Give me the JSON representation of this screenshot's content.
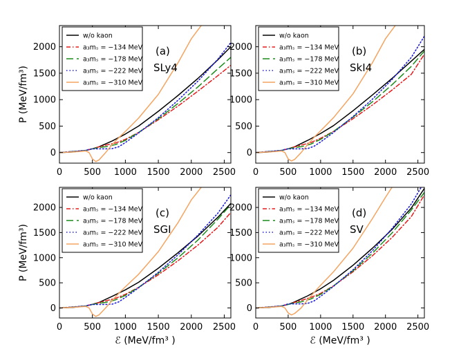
{
  "figure": {
    "ylabel": "P (MeV/fm³)",
    "xlabel": "ℰ (MeV/fm³ )"
  },
  "legend": [
    {
      "label": "w/o kaon",
      "color": "#000000",
      "dash": "solid"
    },
    {
      "label": "a₃mₛ = −134 MeV",
      "color": "#e41a1c",
      "dash": "dashdot"
    },
    {
      "label": "a₃mₛ = −178 MeV",
      "color": "#1a8a1a",
      "dash": "dashed"
    },
    {
      "label": "a₃mₛ = −222 MeV",
      "color": "#1f1fd8",
      "dash": "dotted"
    },
    {
      "label": "a₃mₛ = −310 MeV",
      "color": "#f4a460",
      "dash": "solid"
    }
  ],
  "chart_data": [
    {
      "type": "line",
      "panel": "(a)",
      "model": "SLy4",
      "xlabel": "",
      "ylabel": "P (MeV/fm³)",
      "xlim": [
        0,
        2600
      ],
      "ylim": [
        -200,
        2400
      ],
      "xticks": [
        0,
        500,
        1000,
        1500,
        2000,
        2500
      ],
      "yticks": [
        0,
        500,
        1000,
        1500,
        2000
      ],
      "series": [
        {
          "name": "w/o kaon",
          "x": [
            0,
            200,
            400,
            500,
            600,
            800,
            1000,
            1200,
            1500,
            1800,
            2100,
            2400,
            2600
          ],
          "y": [
            0,
            10,
            40,
            70,
            110,
            220,
            350,
            500,
            780,
            1080,
            1400,
            1750,
            2000
          ]
        },
        {
          "name": "a3ms = -134 MeV",
          "x": [
            0,
            400,
            550,
            700,
            850,
            1000,
            1200,
            1500,
            1800,
            2100,
            2400,
            2600
          ],
          "y": [
            0,
            40,
            90,
            140,
            180,
            250,
            380,
            620,
            880,
            1160,
            1450,
            1650
          ]
        },
        {
          "name": "a3ms = -178 MeV",
          "x": [
            0,
            400,
            500,
            600,
            700,
            850,
            1000,
            1200,
            1500,
            1800,
            2100,
            2400,
            2600
          ],
          "y": [
            0,
            40,
            70,
            95,
            110,
            150,
            230,
            380,
            640,
            930,
            1240,
            1580,
            1800
          ]
        },
        {
          "name": "a3ms = -222 MeV",
          "x": [
            0,
            400,
            450,
            500,
            600,
            700,
            800,
            900,
            1000,
            1200,
            1500,
            1800,
            2100,
            2400,
            2600
          ],
          "y": [
            0,
            40,
            60,
            70,
            70,
            70,
            75,
            110,
            190,
            370,
            660,
            990,
            1350,
            1760,
            2080
          ]
        },
        {
          "name": "a3ms = -310 MeV",
          "x": [
            0,
            300,
            400,
            450,
            500,
            550,
            600,
            700,
            800,
            900,
            1000,
            1200,
            1500,
            1800,
            2000,
            2150
          ],
          "y": [
            0,
            20,
            30,
            0,
            -120,
            -170,
            -140,
            0,
            150,
            280,
            400,
            650,
            1100,
            1700,
            2150,
            2400
          ]
        }
      ]
    },
    {
      "type": "line",
      "panel": "(b)",
      "model": "SkI4",
      "xlabel": "",
      "ylabel": "",
      "xlim": [
        0,
        2600
      ],
      "ylim": [
        -200,
        2400
      ],
      "xticks": [
        0,
        500,
        1000,
        1500,
        2000,
        2500
      ],
      "yticks": [
        0,
        500,
        1000,
        1500,
        2000
      ],
      "series": [
        {
          "name": "w/o kaon",
          "x": [
            0,
            200,
            400,
            500,
            600,
            800,
            1000,
            1200,
            1500,
            1800,
            2100,
            2400,
            2600
          ],
          "y": [
            0,
            10,
            40,
            70,
            110,
            230,
            360,
            510,
            790,
            1090,
            1400,
            1730,
            1950
          ]
        },
        {
          "name": "a3ms = -134 MeV",
          "x": [
            0,
            400,
            550,
            700,
            850,
            1000,
            1200,
            1500,
            1800,
            2100,
            2400,
            2600
          ],
          "y": [
            0,
            40,
            90,
            140,
            190,
            270,
            400,
            640,
            900,
            1180,
            1480,
            1860
          ]
        },
        {
          "name": "a3ms = -178 MeV",
          "x": [
            0,
            400,
            500,
            600,
            700,
            850,
            1000,
            1200,
            1500,
            1800,
            2100,
            2400,
            2600
          ],
          "y": [
            0,
            40,
            70,
            95,
            110,
            160,
            250,
            400,
            670,
            960,
            1280,
            1630,
            1920
          ]
        },
        {
          "name": "a3ms = -222 MeV",
          "x": [
            0,
            400,
            450,
            500,
            600,
            700,
            800,
            900,
            1000,
            1200,
            1500,
            1800,
            2100,
            2400,
            2600
          ],
          "y": [
            0,
            40,
            60,
            70,
            70,
            70,
            75,
            120,
            200,
            380,
            680,
            1010,
            1380,
            1800,
            2200
          ]
        },
        {
          "name": "a3ms = -310 MeV",
          "x": [
            0,
            300,
            400,
            450,
            500,
            550,
            600,
            700,
            800,
            900,
            1000,
            1200,
            1500,
            1800,
            2000,
            2150
          ],
          "y": [
            0,
            20,
            30,
            0,
            -120,
            -160,
            -130,
            0,
            150,
            290,
            410,
            660,
            1110,
            1700,
            2150,
            2400
          ]
        }
      ]
    },
    {
      "type": "line",
      "panel": "(c)",
      "model": "SGI",
      "xlabel": "ℰ (MeV/fm³ )",
      "ylabel": "P (MeV/fm³)",
      "xlim": [
        0,
        2600
      ],
      "ylim": [
        -200,
        2400
      ],
      "xticks": [
        0,
        500,
        1000,
        1500,
        2000,
        2500
      ],
      "yticks": [
        0,
        500,
        1000,
        1500,
        2000
      ],
      "series": [
        {
          "name": "w/o kaon",
          "x": [
            0,
            200,
            400,
            500,
            600,
            800,
            1000,
            1200,
            1500,
            1800,
            2100,
            2400,
            2600
          ],
          "y": [
            0,
            10,
            40,
            70,
            110,
            230,
            360,
            510,
            790,
            1100,
            1430,
            1800,
            2080
          ]
        },
        {
          "name": "a3ms = -134 MeV",
          "x": [
            0,
            400,
            550,
            700,
            850,
            1000,
            1200,
            1500,
            1800,
            2100,
            2400,
            2600
          ],
          "y": [
            0,
            40,
            90,
            140,
            190,
            270,
            410,
            660,
            940,
            1250,
            1600,
            1900
          ]
        },
        {
          "name": "a3ms = -178 MeV",
          "x": [
            0,
            400,
            500,
            600,
            700,
            850,
            1000,
            1200,
            1500,
            1800,
            2100,
            2400,
            2600
          ],
          "y": [
            0,
            40,
            70,
            95,
            110,
            160,
            250,
            410,
            690,
            1000,
            1350,
            1760,
            2060
          ]
        },
        {
          "name": "a3ms = -222 MeV",
          "x": [
            0,
            400,
            450,
            500,
            600,
            700,
            800,
            900,
            1000,
            1200,
            1500,
            1800,
            2100,
            2400,
            2600
          ],
          "y": [
            0,
            40,
            60,
            70,
            70,
            70,
            75,
            120,
            210,
            400,
            710,
            1060,
            1450,
            1880,
            2250
          ]
        },
        {
          "name": "a3ms = -310 MeV",
          "x": [
            0,
            300,
            400,
            450,
            500,
            550,
            600,
            700,
            800,
            900,
            1000,
            1200,
            1500,
            1800,
            2000,
            2150
          ],
          "y": [
            0,
            20,
            30,
            0,
            -120,
            -170,
            -140,
            0,
            150,
            290,
            420,
            670,
            1120,
            1700,
            2150,
            2400
          ]
        }
      ]
    },
    {
      "type": "line",
      "panel": "(d)",
      "model": "SV",
      "xlabel": "ℰ (MeV/fm³ )",
      "ylabel": "",
      "xlim": [
        0,
        2600
      ],
      "ylim": [
        -200,
        2400
      ],
      "xticks": [
        0,
        500,
        1000,
        1500,
        2000,
        2500
      ],
      "yticks": [
        0,
        500,
        1000,
        1500,
        2000
      ],
      "series": [
        {
          "name": "w/o kaon",
          "x": [
            0,
            200,
            400,
            500,
            600,
            800,
            1000,
            1200,
            1500,
            1800,
            2100,
            2400,
            2600
          ],
          "y": [
            0,
            10,
            40,
            70,
            120,
            240,
            380,
            550,
            850,
            1190,
            1560,
            1990,
            2380
          ]
        },
        {
          "name": "a3ms = -134 MeV",
          "x": [
            0,
            400,
            550,
            700,
            850,
            1000,
            1200,
            1500,
            1800,
            2100,
            2400,
            2600
          ],
          "y": [
            0,
            40,
            90,
            150,
            210,
            290,
            440,
            720,
            1040,
            1400,
            1820,
            2250
          ]
        },
        {
          "name": "a3ms = -178 MeV",
          "x": [
            0,
            400,
            500,
            600,
            700,
            850,
            1000,
            1200,
            1500,
            1800,
            2100,
            2400,
            2600
          ],
          "y": [
            0,
            40,
            70,
            100,
            120,
            180,
            270,
            440,
            740,
            1090,
            1490,
            1950,
            2300
          ]
        },
        {
          "name": "a3ms = -222 MeV",
          "x": [
            0,
            400,
            450,
            500,
            600,
            700,
            800,
            900,
            1000,
            1200,
            1500,
            1800,
            2100,
            2400,
            2550
          ],
          "y": [
            0,
            40,
            60,
            80,
            80,
            80,
            90,
            140,
            230,
            430,
            760,
            1140,
            1580,
            2070,
            2400
          ]
        },
        {
          "name": "a3ms = -310 MeV",
          "x": [
            0,
            300,
            400,
            450,
            500,
            550,
            600,
            700,
            800,
            900,
            1000,
            1200,
            1500,
            1800,
            2000,
            2100
          ],
          "y": [
            0,
            20,
            30,
            0,
            -100,
            -140,
            -110,
            0,
            160,
            310,
            450,
            720,
            1190,
            1780,
            2200,
            2400
          ]
        }
      ]
    }
  ]
}
